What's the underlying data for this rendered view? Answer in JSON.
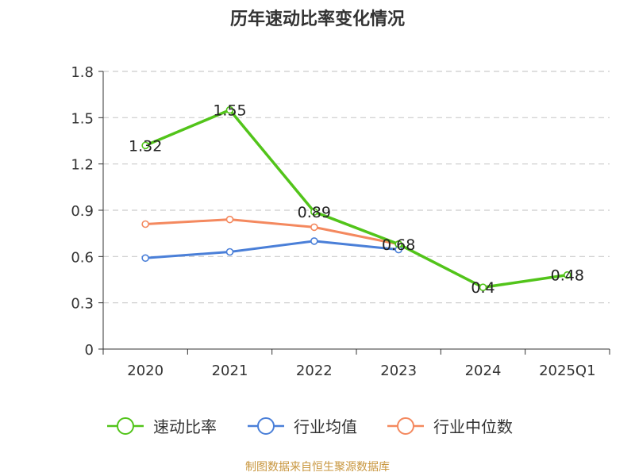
{
  "chart_data": {
    "type": "line",
    "title": "历年速动比率变化情况",
    "categories": [
      "2020",
      "2021",
      "2022",
      "2023",
      "2024",
      "2025Q1"
    ],
    "ylim": [
      0,
      1.8
    ],
    "yticks": [
      "0",
      "0.3",
      "0.6",
      "0.9",
      "1.2",
      "1.5",
      "1.8"
    ],
    "grid": true,
    "legend_position": "bottom",
    "series": [
      {
        "name": "速动比率",
        "color": "#52c41a",
        "values": [
          1.32,
          1.55,
          0.89,
          0.68,
          0.4,
          0.48
        ],
        "labels": [
          "1.32",
          "1.55",
          "0.89",
          "0.68",
          "0.4",
          "0.48"
        ]
      },
      {
        "name": "行业均值",
        "color": "#4a7fd8",
        "values": [
          0.59,
          0.63,
          0.7,
          0.645,
          null,
          null
        ]
      },
      {
        "name": "行业中位数",
        "color": "#f4895f",
        "values": [
          0.81,
          0.84,
          0.79,
          0.68,
          null,
          null
        ]
      }
    ]
  },
  "source": {
    "text": "制图数据来自恒生聚源数据库",
    "color": "#c8963e"
  }
}
